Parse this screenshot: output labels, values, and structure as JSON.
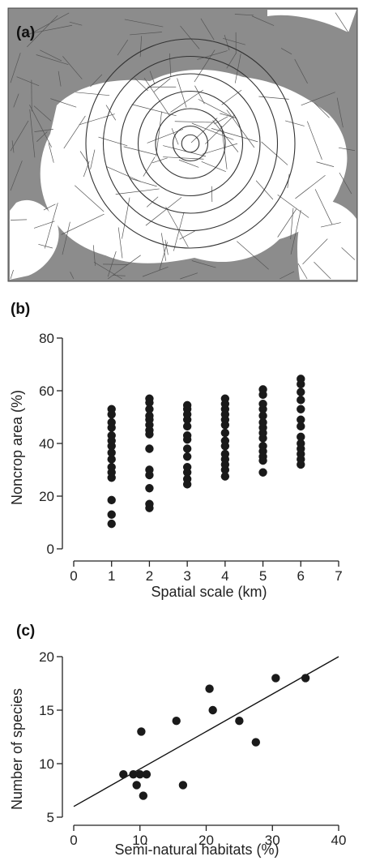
{
  "panels": {
    "a_label": "(a)",
    "b_label": "(b)",
    "c_label": "(c)"
  },
  "map": {
    "ring_radii_km": [
      0.5,
      1,
      2,
      3,
      4,
      5,
      6
    ],
    "colors": {
      "background": "#8c8c8c",
      "fields": "#ffffff",
      "lines": "#555555"
    }
  },
  "chart_data": [
    {
      "panel": "(b)",
      "type": "scatter",
      "title": "",
      "xlabel": "Spatial scale (km)",
      "ylabel": "Noncrop area (%)",
      "xlim": [
        0,
        7
      ],
      "ylim": [
        0,
        80
      ],
      "xticks": [
        0,
        1,
        2,
        3,
        4,
        5,
        6,
        7
      ],
      "yticks": [
        0,
        20,
        40,
        60,
        80
      ],
      "grid": false,
      "points": [
        {
          "x": 1,
          "y": 9.5
        },
        {
          "x": 1,
          "y": 13
        },
        {
          "x": 1,
          "y": 18.5
        },
        {
          "x": 1,
          "y": 27
        },
        {
          "x": 1,
          "y": 29
        },
        {
          "x": 1,
          "y": 31
        },
        {
          "x": 1,
          "y": 34
        },
        {
          "x": 1,
          "y": 36.5
        },
        {
          "x": 1,
          "y": 39
        },
        {
          "x": 1,
          "y": 41
        },
        {
          "x": 1,
          "y": 43
        },
        {
          "x": 1,
          "y": 46
        },
        {
          "x": 1,
          "y": 48
        },
        {
          "x": 1,
          "y": 51
        },
        {
          "x": 1,
          "y": 53
        },
        {
          "x": 2,
          "y": 15.5
        },
        {
          "x": 2,
          "y": 17
        },
        {
          "x": 2,
          "y": 23
        },
        {
          "x": 2,
          "y": 28
        },
        {
          "x": 2,
          "y": 30
        },
        {
          "x": 2,
          "y": 38
        },
        {
          "x": 2,
          "y": 43.5
        },
        {
          "x": 2,
          "y": 45
        },
        {
          "x": 2,
          "y": 47
        },
        {
          "x": 2,
          "y": 49
        },
        {
          "x": 2,
          "y": 50.5
        },
        {
          "x": 2,
          "y": 53
        },
        {
          "x": 2,
          "y": 55.5
        },
        {
          "x": 2,
          "y": 57
        },
        {
          "x": 3,
          "y": 24.5
        },
        {
          "x": 3,
          "y": 26.5
        },
        {
          "x": 3,
          "y": 29
        },
        {
          "x": 3,
          "y": 31
        },
        {
          "x": 3,
          "y": 35
        },
        {
          "x": 3,
          "y": 38
        },
        {
          "x": 3,
          "y": 41.5
        },
        {
          "x": 3,
          "y": 43
        },
        {
          "x": 3,
          "y": 46.5
        },
        {
          "x": 3,
          "y": 49
        },
        {
          "x": 3,
          "y": 51
        },
        {
          "x": 3,
          "y": 53
        },
        {
          "x": 3,
          "y": 54.5
        },
        {
          "x": 4,
          "y": 27.5
        },
        {
          "x": 4,
          "y": 30
        },
        {
          "x": 4,
          "y": 32
        },
        {
          "x": 4,
          "y": 34
        },
        {
          "x": 4,
          "y": 36
        },
        {
          "x": 4,
          "y": 39
        },
        {
          "x": 4,
          "y": 41
        },
        {
          "x": 4,
          "y": 44
        },
        {
          "x": 4,
          "y": 47
        },
        {
          "x": 4,
          "y": 49
        },
        {
          "x": 4,
          "y": 51
        },
        {
          "x": 4,
          "y": 53
        },
        {
          "x": 4,
          "y": 55
        },
        {
          "x": 4,
          "y": 57
        },
        {
          "x": 5,
          "y": 29
        },
        {
          "x": 5,
          "y": 33.5
        },
        {
          "x": 5,
          "y": 35
        },
        {
          "x": 5,
          "y": 37
        },
        {
          "x": 5,
          "y": 39
        },
        {
          "x": 5,
          "y": 42
        },
        {
          "x": 5,
          "y": 44
        },
        {
          "x": 5,
          "y": 46
        },
        {
          "x": 5,
          "y": 48
        },
        {
          "x": 5,
          "y": 50.5
        },
        {
          "x": 5,
          "y": 53
        },
        {
          "x": 5,
          "y": 55
        },
        {
          "x": 5,
          "y": 58.5
        },
        {
          "x": 5,
          "y": 60.5
        },
        {
          "x": 6,
          "y": 32
        },
        {
          "x": 6,
          "y": 34
        },
        {
          "x": 6,
          "y": 36
        },
        {
          "x": 6,
          "y": 38
        },
        {
          "x": 6,
          "y": 40
        },
        {
          "x": 6,
          "y": 42.5
        },
        {
          "x": 6,
          "y": 46.5
        },
        {
          "x": 6,
          "y": 49
        },
        {
          "x": 6,
          "y": 53
        },
        {
          "x": 6,
          "y": 56.5
        },
        {
          "x": 6,
          "y": 59.5
        },
        {
          "x": 6,
          "y": 62.5
        },
        {
          "x": 6,
          "y": 64.5
        }
      ]
    },
    {
      "panel": "(c)",
      "type": "scatter",
      "title": "",
      "xlabel": "Semi-natural habitats (%)",
      "ylabel": "Number of species",
      "xlim": [
        0,
        40
      ],
      "ylim": [
        5,
        20
      ],
      "xticks": [
        0,
        10,
        20,
        30,
        40
      ],
      "yticks": [
        5,
        10,
        15,
        20
      ],
      "grid": false,
      "points": [
        {
          "x": 7.5,
          "y": 9
        },
        {
          "x": 9,
          "y": 9
        },
        {
          "x": 9.5,
          "y": 8
        },
        {
          "x": 10,
          "y": 9
        },
        {
          "x": 10.2,
          "y": 13
        },
        {
          "x": 10.5,
          "y": 7
        },
        {
          "x": 11,
          "y": 9
        },
        {
          "x": 15.5,
          "y": 14
        },
        {
          "x": 16.5,
          "y": 8
        },
        {
          "x": 20.5,
          "y": 17
        },
        {
          "x": 21,
          "y": 15
        },
        {
          "x": 25,
          "y": 14
        },
        {
          "x": 27.5,
          "y": 12
        },
        {
          "x": 30.5,
          "y": 18
        },
        {
          "x": 35,
          "y": 18
        }
      ],
      "fit_line": {
        "x": [
          0,
          40
        ],
        "y": [
          6,
          20
        ]
      }
    }
  ]
}
